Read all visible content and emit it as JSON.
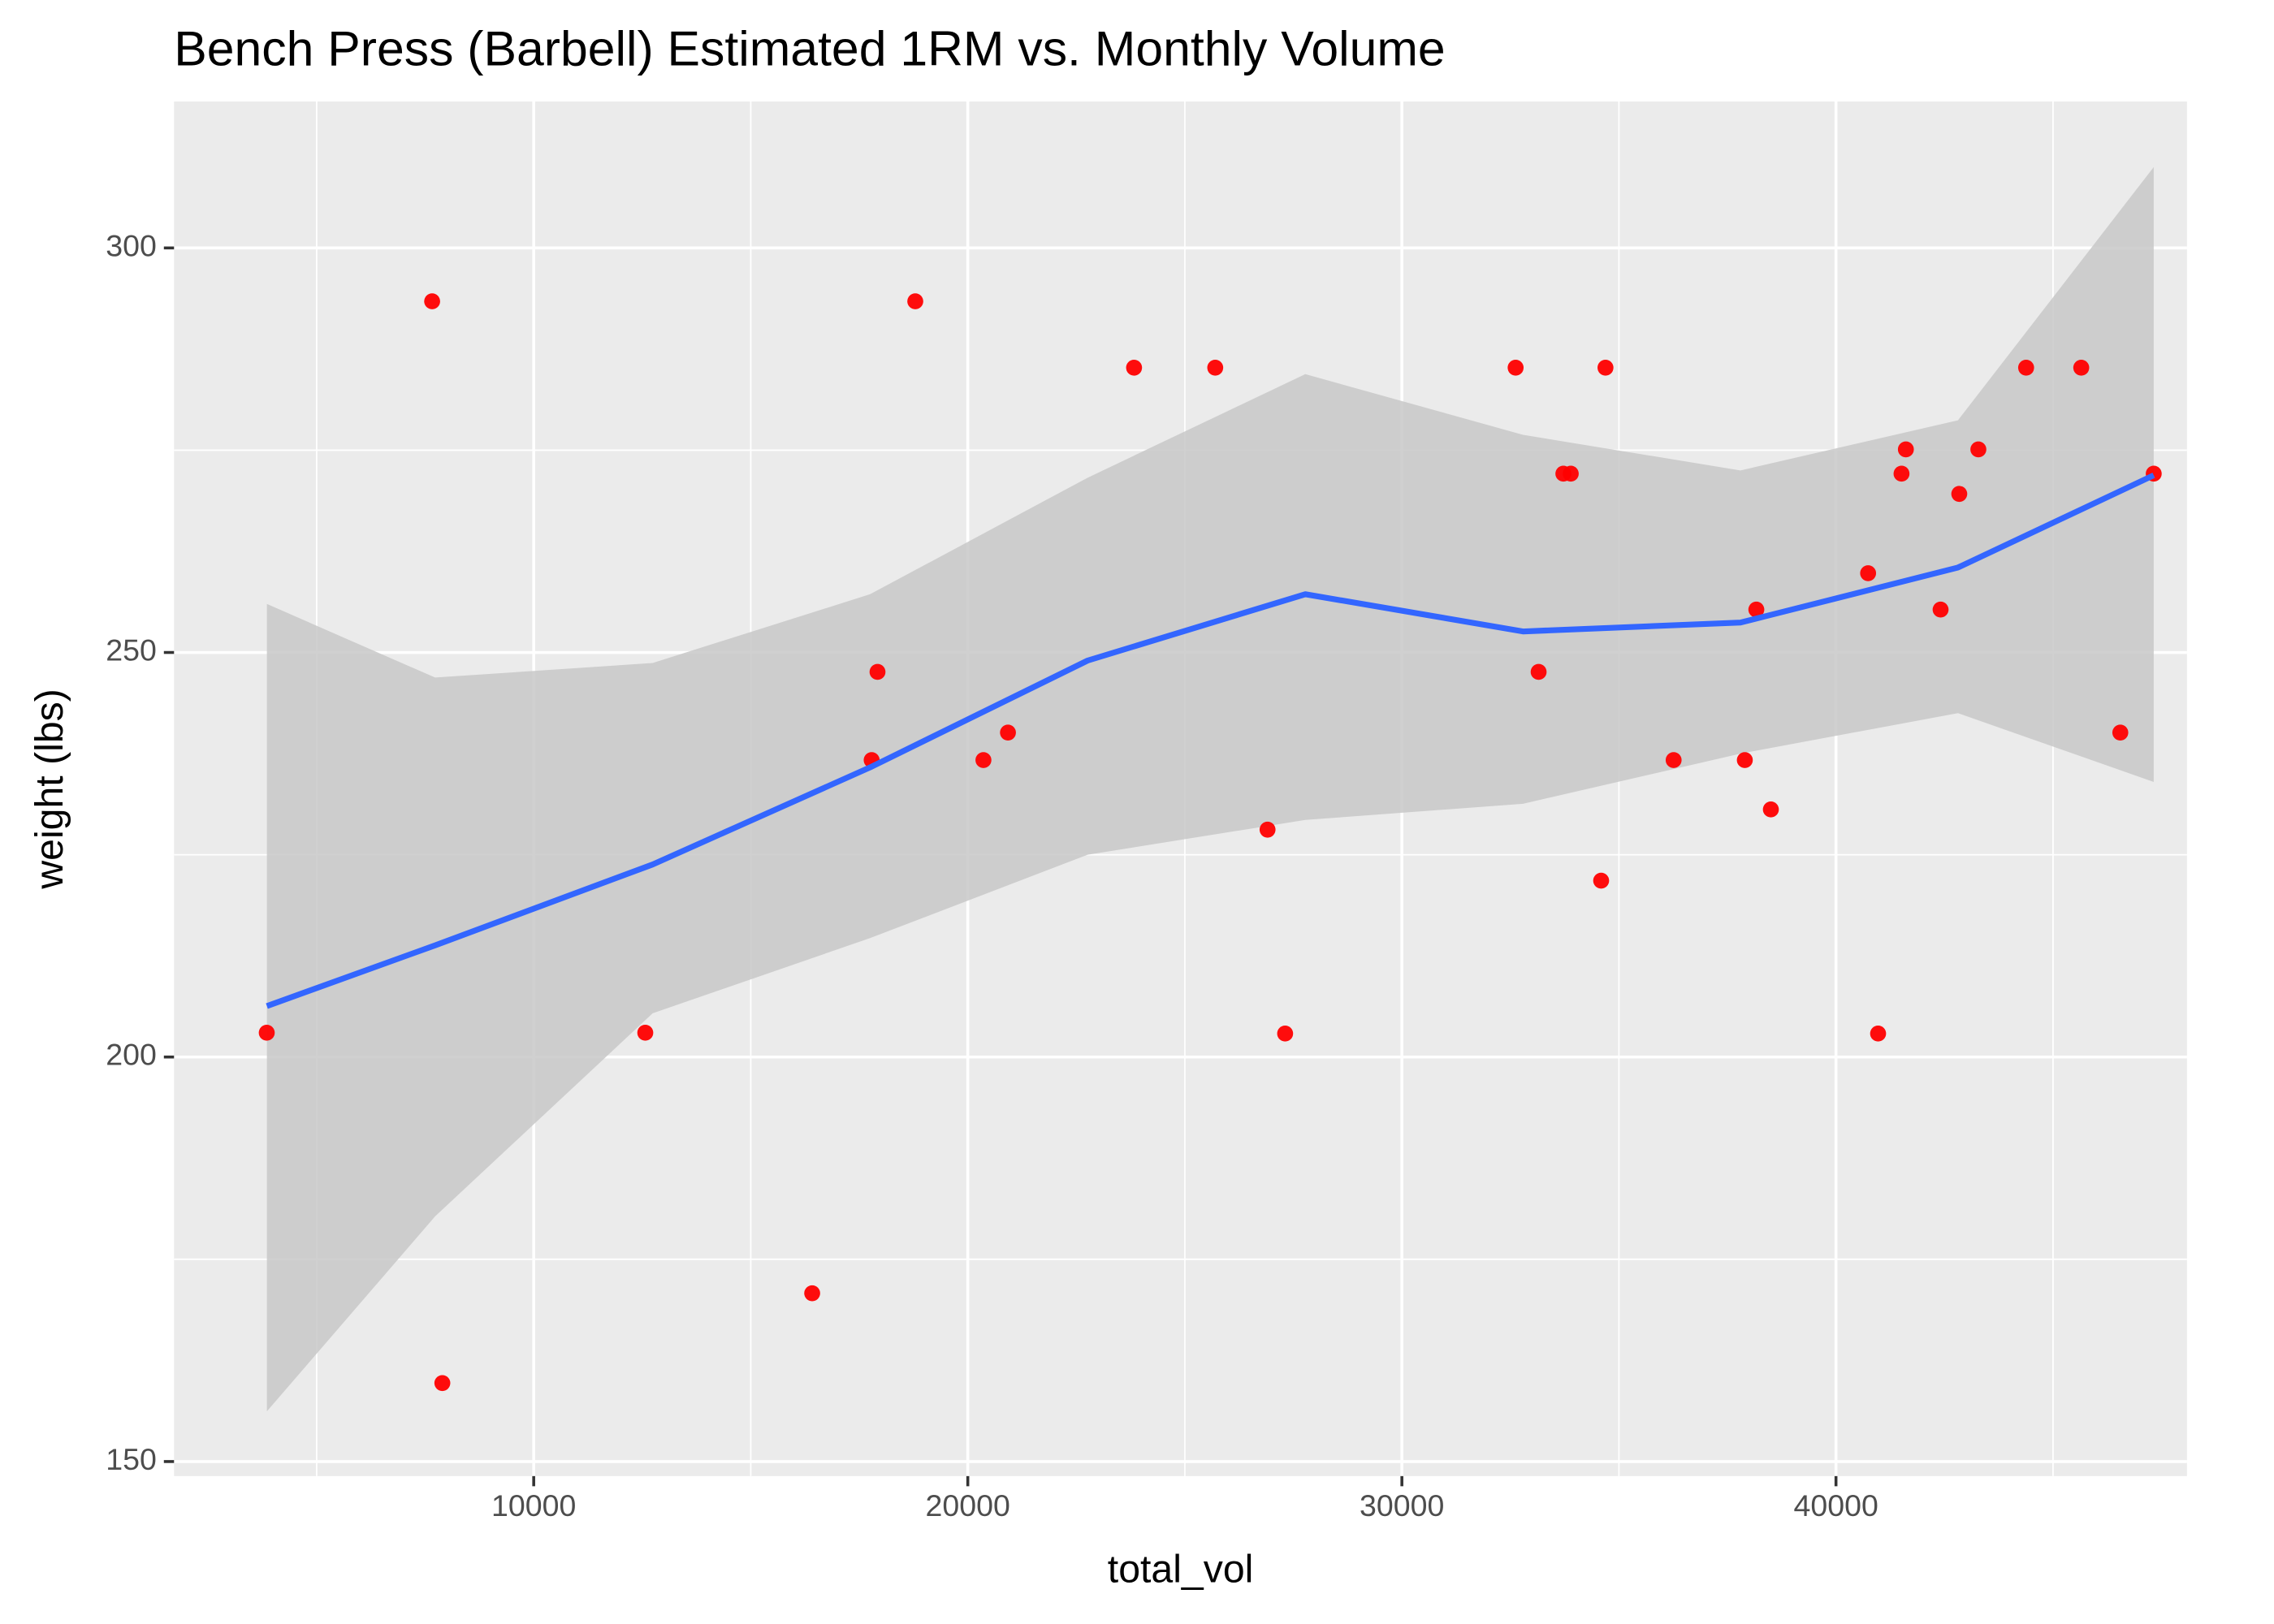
{
  "chart_data": {
    "type": "scatter",
    "title": "Bench Press (Barbell) Estimated 1RM vs. Monthly Volume",
    "x_label": "total_vol",
    "y_label": "weight (lbs)",
    "xlim": [
      1714,
      48086
    ],
    "ylim": [
      148.2,
      318.1
    ],
    "xticks": [
      10000,
      20000,
      30000,
      40000
    ],
    "yticks": [
      150,
      200,
      250,
      300
    ],
    "xminor": [
      5000,
      15000,
      25000,
      35000,
      45000
    ],
    "yminor": [
      175,
      225,
      275
    ],
    "grid": true,
    "point_color": "#ff0000",
    "x": [
      3850,
      7660,
      7895,
      12570,
      16415,
      17785,
      17920,
      18790,
      20360,
      20925,
      23830,
      25700,
      26905,
      27310,
      32620,
      33150,
      33720,
      33890,
      34590,
      34690,
      36260,
      37900,
      38165,
      38500,
      40740,
      40970,
      41510,
      41610,
      42410,
      42840,
      43280,
      44380,
      45650,
      46550,
      47320
    ],
    "values": [
      203,
      293.4,
      159.7,
      203,
      170.8,
      236.7,
      247.6,
      293.4,
      236.7,
      240.1,
      285.2,
      285.2,
      228.1,
      202.9,
      285.2,
      247.6,
      272.1,
      272.1,
      221.8,
      285.2,
      236.7,
      236.7,
      255.3,
      230.6,
      259.8,
      202.9,
      272.1,
      275.1,
      255.3,
      269.6,
      275.1,
      285.2,
      285.2,
      240.1,
      272.1
    ],
    "smooth": {
      "color": "#3366ff",
      "band_color": "#c8c8c8",
      "x": [
        3853,
        7728,
        12740,
        17750,
        22760,
        27775,
        32790,
        37800,
        42810,
        47320
      ],
      "values": [
        206.3,
        213.8,
        223.8,
        235.8,
        249.0,
        257.2,
        252.6,
        253.7,
        260.5,
        271.9
      ],
      "upper": [
        256.0,
        246.9,
        248.7,
        257.2,
        271.6,
        284.4,
        276.9,
        272.5,
        278.7,
        310.0
      ],
      "lower": [
        156.2,
        180.3,
        205.4,
        214.7,
        225.0,
        229.3,
        231.3,
        237.5,
        242.5,
        234.0
      ]
    }
  }
}
